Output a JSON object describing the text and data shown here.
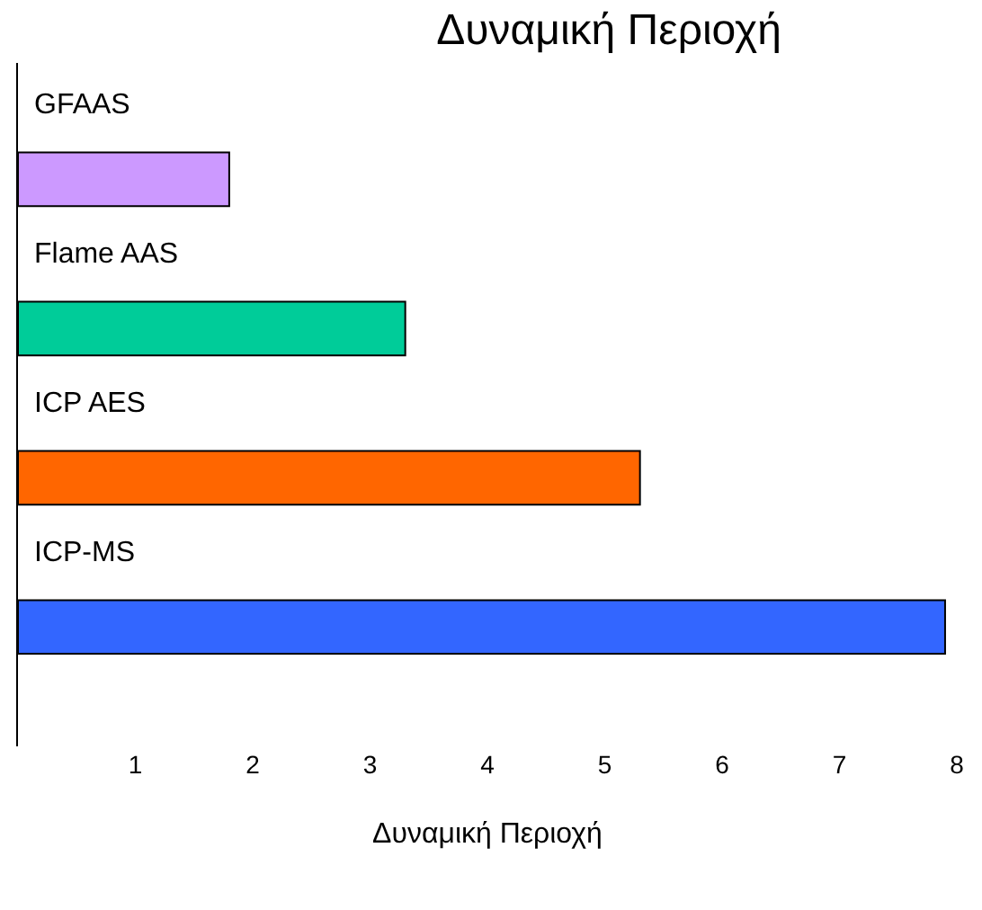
{
  "chart_data": {
    "type": "bar",
    "orientation": "horizontal",
    "title": "Δυναμική Περιοχή",
    "xlabel": "Δυναμική Περιοχή",
    "categories": [
      "GFAAS",
      "Flame AAS",
      "ICP AES",
      "ICP-MS"
    ],
    "values": [
      1.8,
      3.3,
      5.3,
      7.9
    ],
    "colors": [
      "#cc99ff",
      "#00cc99",
      "#ff6600",
      "#3366ff"
    ],
    "xlim": [
      0,
      8
    ],
    "xticks": [
      1,
      2,
      3,
      4,
      5,
      6,
      7,
      8
    ]
  }
}
